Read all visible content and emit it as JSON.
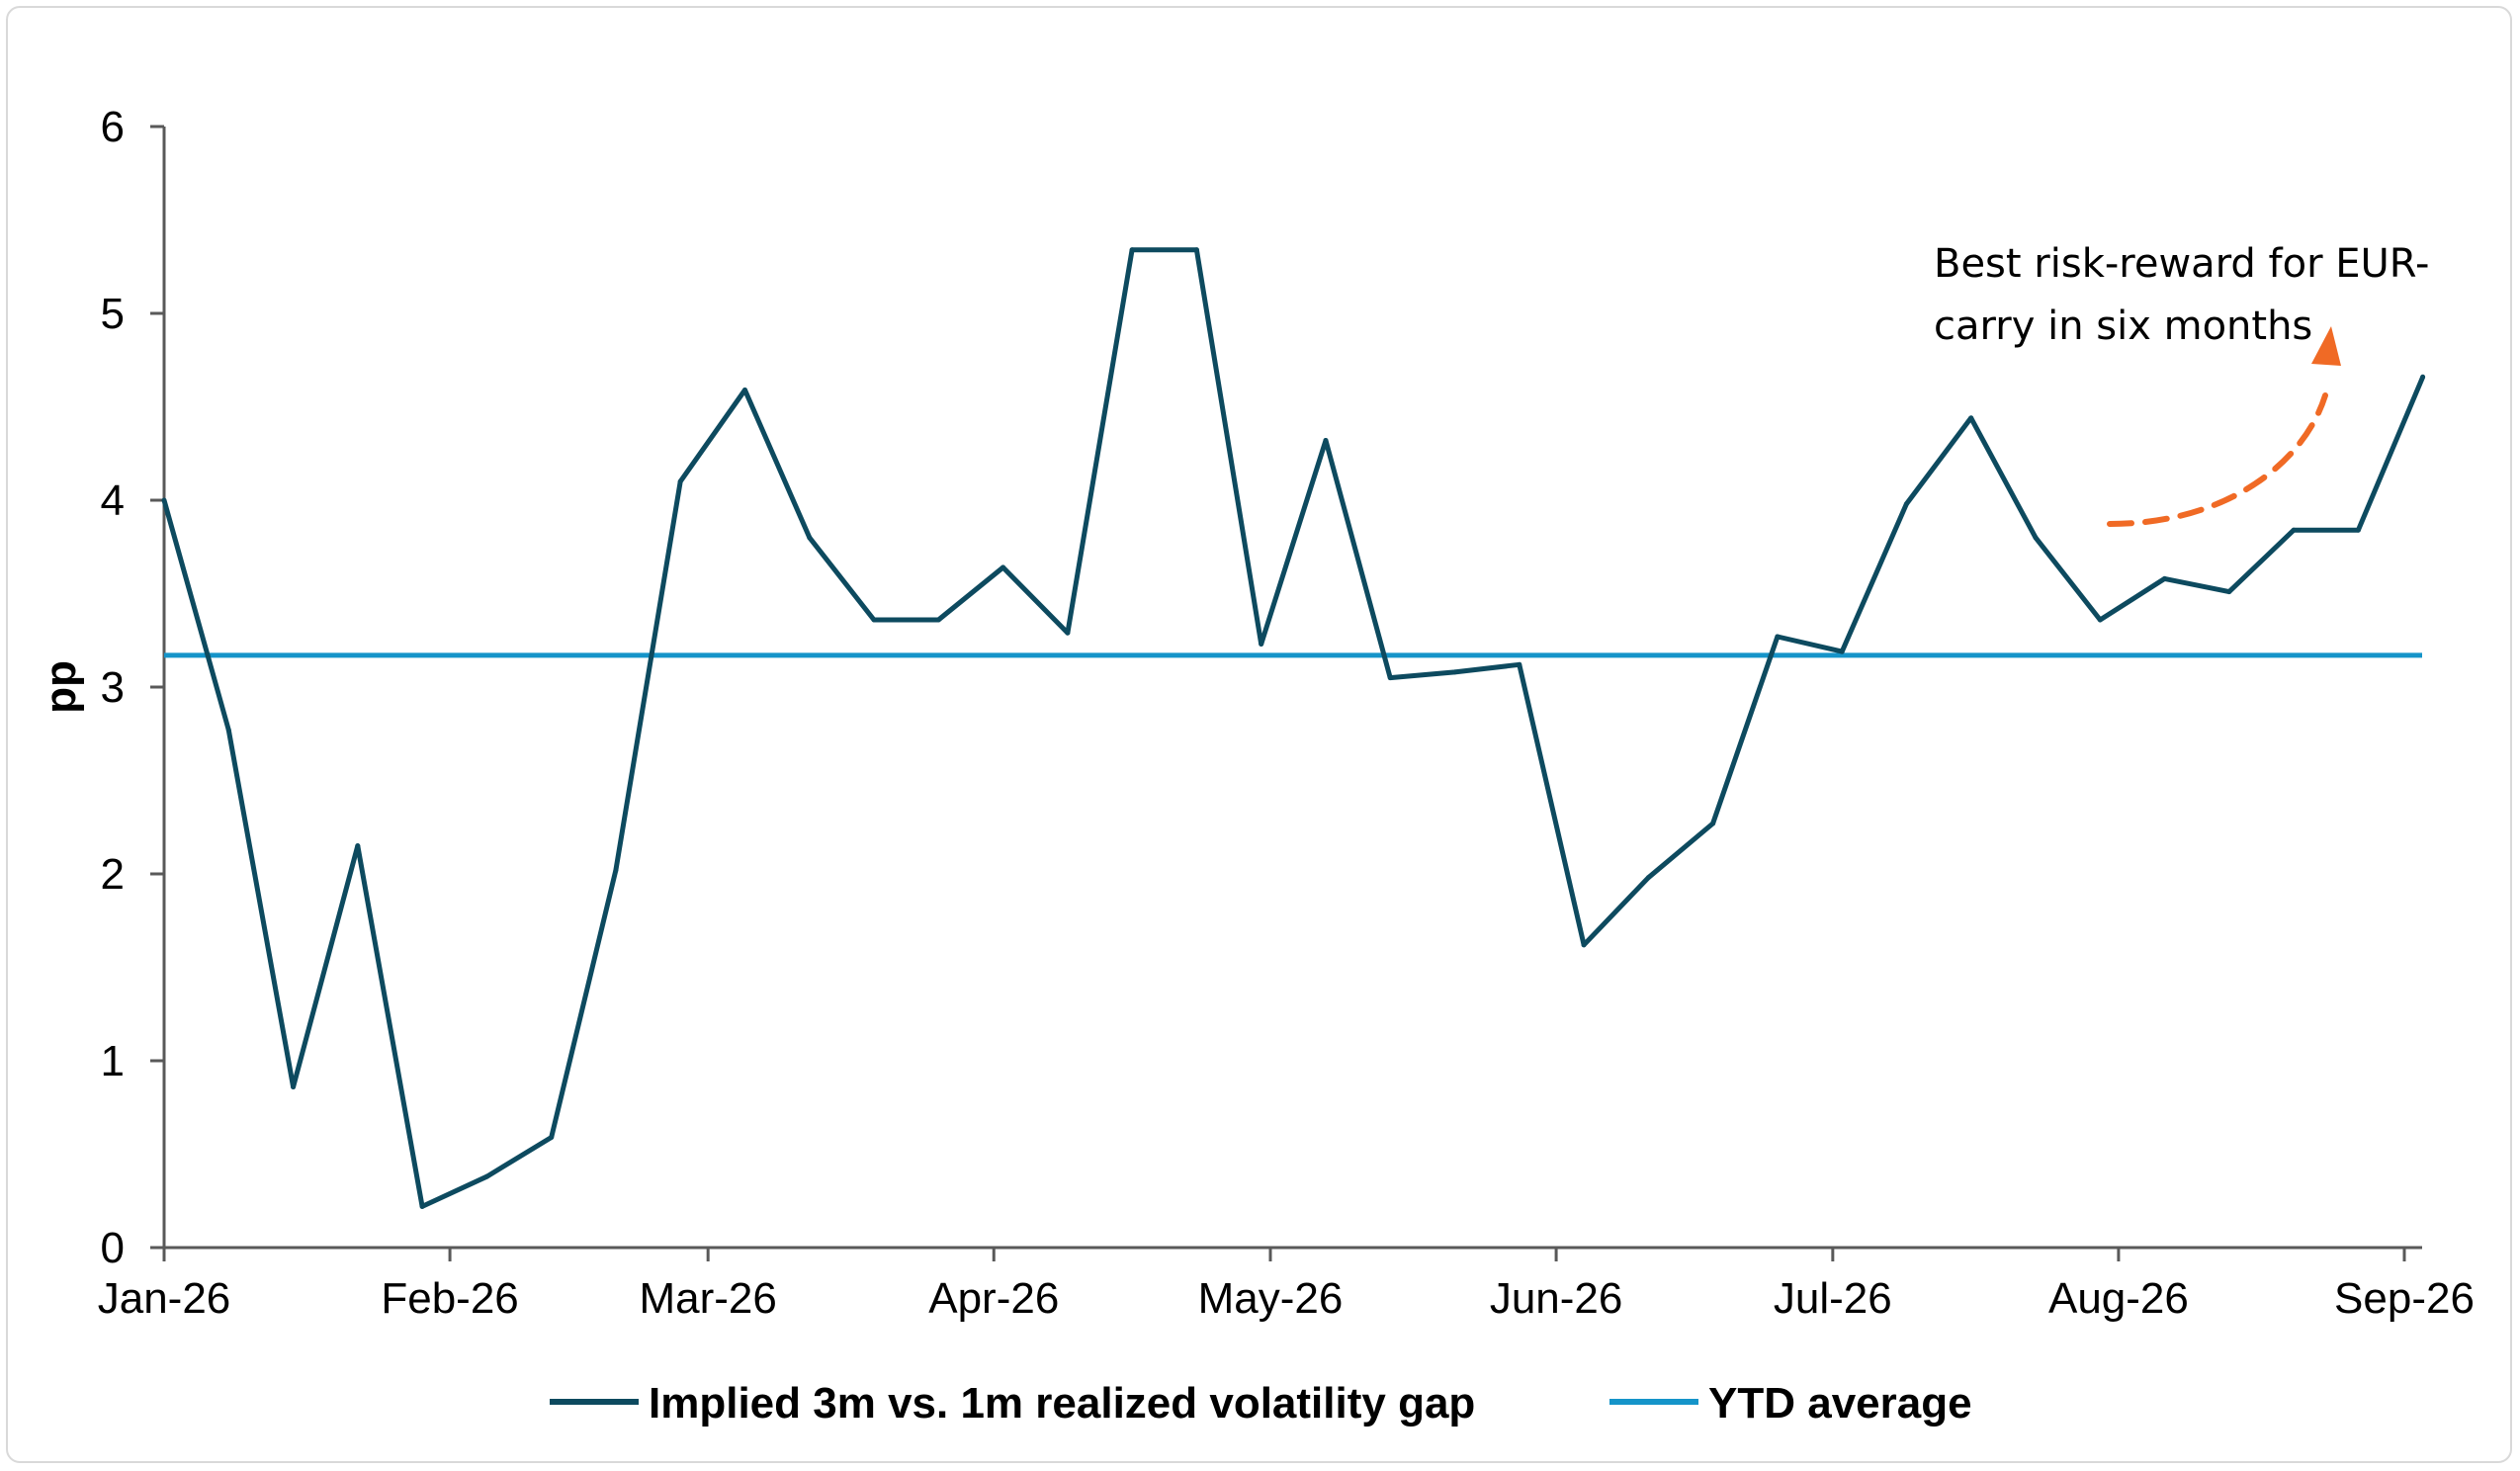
{
  "chart_data": {
    "type": "line",
    "title": "",
    "xlabel": "",
    "ylabel": "pp",
    "ylim": [
      0,
      6
    ],
    "yticks": [
      "0",
      "1",
      "2",
      "3",
      "4",
      "5",
      "6"
    ],
    "xlim": [
      "2026-01-01",
      "2026-09-01"
    ],
    "xtick_labels": [
      "Jan-26",
      "Feb-26",
      "Mar-26",
      "Apr-26",
      "May-26",
      "Jun-26",
      "Jul-26",
      "Aug-26",
      "Sep-26"
    ],
    "xtick_dates": [
      "2026-01-01",
      "2026-02-01",
      "2026-03-01",
      "2026-04-01",
      "2026-05-01",
      "2026-06-01",
      "2026-07-01",
      "2026-08-01",
      "2026-09-01"
    ],
    "grid": false,
    "legend_position": "bottom",
    "colors": {
      "gap": "#0d4a5f",
      "average": "#1594c9",
      "arrow": "#f06a25"
    },
    "series": [
      {
        "name": "Implied 3m vs. 1m realized volatility gap",
        "x": [
          "2026-01-01",
          "2026-01-08",
          "2026-01-15",
          "2026-01-22",
          "2026-01-29",
          "2026-02-05",
          "2026-02-12",
          "2026-02-19",
          "2026-02-26",
          "2026-03-05",
          "2026-03-12",
          "2026-03-19",
          "2026-03-26",
          "2026-04-02",
          "2026-04-09",
          "2026-04-16",
          "2026-04-23",
          "2026-04-30",
          "2026-05-07",
          "2026-05-14",
          "2026-05-21",
          "2026-05-28",
          "2026-06-04",
          "2026-06-11",
          "2026-06-18",
          "2026-06-25",
          "2026-07-02",
          "2026-07-09",
          "2026-07-16",
          "2026-07-23",
          "2026-07-30",
          "2026-08-06",
          "2026-08-13",
          "2026-08-20",
          "2026-08-27",
          "2026-09-03"
        ],
        "values": [
          4.0,
          2.77,
          0.86,
          2.15,
          0.22,
          0.38,
          0.59,
          2.02,
          4.1,
          4.59,
          3.8,
          3.36,
          3.36,
          3.64,
          3.29,
          5.34,
          5.34,
          3.23,
          4.32,
          3.05,
          3.08,
          3.12,
          1.62,
          1.98,
          2.27,
          3.27,
          3.19,
          3.98,
          4.44,
          3.8,
          3.36,
          3.58,
          3.51,
          3.84,
          3.84,
          4.66
        ]
      },
      {
        "name": "YTD average",
        "constant": 3.17
      }
    ],
    "annotations": [
      {
        "text_lines": [
          "Best risk-reward for EUR-",
          "carry in six months"
        ],
        "arrow": "curved upward dashed arrow toward latest value"
      }
    ]
  }
}
